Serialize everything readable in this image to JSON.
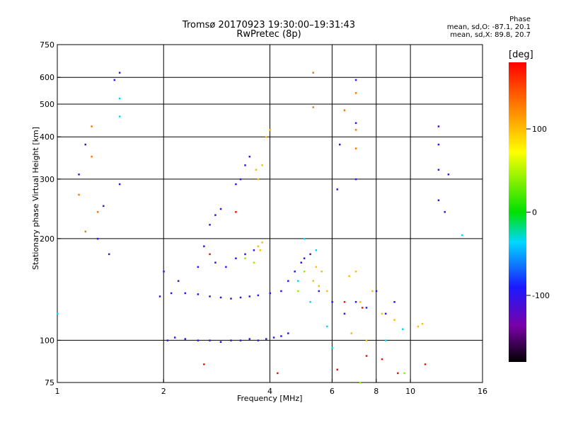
{
  "title": "Tromsø 20170923 19:30:00–19:31:43",
  "subtitle": "RwPretec (8p)",
  "phase_box": {
    "heading": "Phase",
    "line_o": "mean, sd,O: -87.1, 20.1",
    "line_x": "mean, sd,X: 89.8, 20.7"
  },
  "chart_data": {
    "type": "scatter",
    "xlabel": "Frequency [MHz]",
    "ylabel": "Stationary phase Virtual Height [km]",
    "x_scale": "log",
    "y_scale": "log",
    "xlim": [
      1,
      16
    ],
    "ylim": [
      75,
      750
    ],
    "x_ticks": [
      1,
      2,
      4,
      6,
      8,
      10,
      16
    ],
    "y_ticks": [
      75,
      100,
      200,
      300,
      400,
      500,
      600,
      750
    ],
    "grid": true,
    "colorbar": {
      "label": "[deg]",
      "range": [
        -180,
        180
      ],
      "ticks": [
        100,
        0,
        -100
      ],
      "colormap": "rainbow"
    },
    "series": [
      {
        "color_value": -100,
        "points": [
          [
            2.05,
            100
          ],
          [
            2.15,
            102
          ],
          [
            2.3,
            101
          ],
          [
            2.5,
            100
          ],
          [
            2.7,
            100
          ],
          [
            2.9,
            99
          ],
          [
            3.1,
            100
          ],
          [
            3.3,
            100
          ],
          [
            3.5,
            101
          ],
          [
            3.7,
            100
          ],
          [
            3.9,
            101
          ],
          [
            4.1,
            102
          ],
          [
            4.3,
            103
          ],
          [
            4.5,
            105
          ],
          [
            1.95,
            135
          ],
          [
            2.1,
            138
          ],
          [
            2.3,
            138
          ],
          [
            2.5,
            137
          ],
          [
            2.7,
            135
          ],
          [
            2.9,
            134
          ],
          [
            3.1,
            133
          ],
          [
            3.3,
            134
          ],
          [
            3.5,
            135
          ],
          [
            3.7,
            136
          ],
          [
            4.0,
            138
          ],
          [
            4.3,
            140
          ],
          [
            2.0,
            160
          ],
          [
            2.2,
            150
          ],
          [
            2.5,
            165
          ],
          [
            2.8,
            170
          ],
          [
            3.0,
            165
          ],
          [
            3.2,
            175
          ],
          [
            3.4,
            180
          ],
          [
            3.6,
            185
          ],
          [
            2.6,
            190
          ],
          [
            2.7,
            220
          ],
          [
            2.8,
            235
          ],
          [
            2.9,
            245
          ],
          [
            3.2,
            290
          ],
          [
            3.3,
            300
          ],
          [
            3.4,
            330
          ],
          [
            3.5,
            350
          ],
          [
            1.3,
            200
          ],
          [
            1.4,
            180
          ],
          [
            1.5,
            290
          ],
          [
            1.5,
            620
          ],
          [
            1.45,
            590
          ],
          [
            1.15,
            310
          ],
          [
            1.2,
            380
          ],
          [
            1.35,
            250
          ],
          [
            4.5,
            150
          ],
          [
            4.7,
            160
          ],
          [
            4.9,
            170
          ],
          [
            5.0,
            175
          ],
          [
            5.2,
            180
          ],
          [
            5.5,
            140
          ],
          [
            6.0,
            130
          ],
          [
            6.5,
            120
          ],
          [
            7.0,
            130
          ],
          [
            7.5,
            125
          ],
          [
            8.0,
            140
          ],
          [
            8.5,
            120
          ],
          [
            9.0,
            130
          ],
          [
            7.0,
            440
          ],
          [
            7.0,
            300
          ],
          [
            7.0,
            590
          ],
          [
            6.3,
            380
          ],
          [
            6.2,
            280
          ],
          [
            12,
            430
          ],
          [
            12,
            380
          ],
          [
            12,
            320
          ],
          [
            12,
            260
          ],
          [
            12.8,
            310
          ],
          [
            12.5,
            240
          ]
        ]
      },
      {
        "color_value": -35,
        "points": [
          [
            5.0,
            200
          ],
          [
            5.4,
            185
          ],
          [
            4.8,
            150
          ],
          [
            5.2,
            130
          ],
          [
            5.8,
            110
          ],
          [
            6.0,
            95
          ],
          [
            8.5,
            100
          ],
          [
            9.5,
            108
          ],
          [
            1.5,
            520
          ],
          [
            1.5,
            460
          ],
          [
            1.0,
            120
          ],
          [
            14,
            205
          ]
        ]
      },
      {
        "color_value": 100,
        "points": [
          [
            3.7,
            190
          ],
          [
            3.8,
            195
          ],
          [
            3.75,
            185
          ],
          [
            3.7,
            300
          ],
          [
            3.65,
            320
          ],
          [
            3.8,
            330
          ],
          [
            3.9,
            400
          ],
          [
            4.0,
            420
          ],
          [
            5.3,
            150
          ],
          [
            5.5,
            145
          ],
          [
            5.6,
            160
          ],
          [
            5.4,
            165
          ],
          [
            5.8,
            140
          ],
          [
            6.7,
            155
          ],
          [
            7.0,
            160
          ],
          [
            7.2,
            130
          ],
          [
            7.8,
            140
          ],
          [
            8.3,
            120
          ],
          [
            9.0,
            115
          ],
          [
            10.5,
            110
          ],
          [
            10.8,
            112
          ],
          [
            6.8,
            105
          ],
          [
            7.5,
            100
          ]
        ]
      },
      {
        "color_value": 130,
        "points": [
          [
            5.3,
            620
          ],
          [
            5.3,
            490
          ],
          [
            7.0,
            540
          ],
          [
            7.0,
            420
          ],
          [
            7.0,
            370
          ],
          [
            6.5,
            480
          ],
          [
            1.25,
            430
          ],
          [
            1.25,
            350
          ],
          [
            1.15,
            270
          ],
          [
            1.3,
            240
          ],
          [
            1.2,
            210
          ]
        ]
      },
      {
        "color_value": 175,
        "points": [
          [
            3.2,
            240
          ],
          [
            2.7,
            180
          ],
          [
            2.6,
            85
          ],
          [
            6.5,
            130
          ],
          [
            7.3,
            125
          ],
          [
            7.5,
            90
          ],
          [
            8.3,
            88
          ],
          [
            9.2,
            80
          ],
          [
            11,
            85
          ],
          [
            6.2,
            82
          ],
          [
            4.2,
            80
          ]
        ]
      },
      {
        "color_value": 40,
        "points": [
          [
            3.6,
            170
          ],
          [
            3.4,
            175
          ],
          [
            4.8,
            140
          ],
          [
            5.0,
            160
          ],
          [
            9.6,
            80
          ],
          [
            7.2,
            75
          ]
        ]
      }
    ]
  }
}
